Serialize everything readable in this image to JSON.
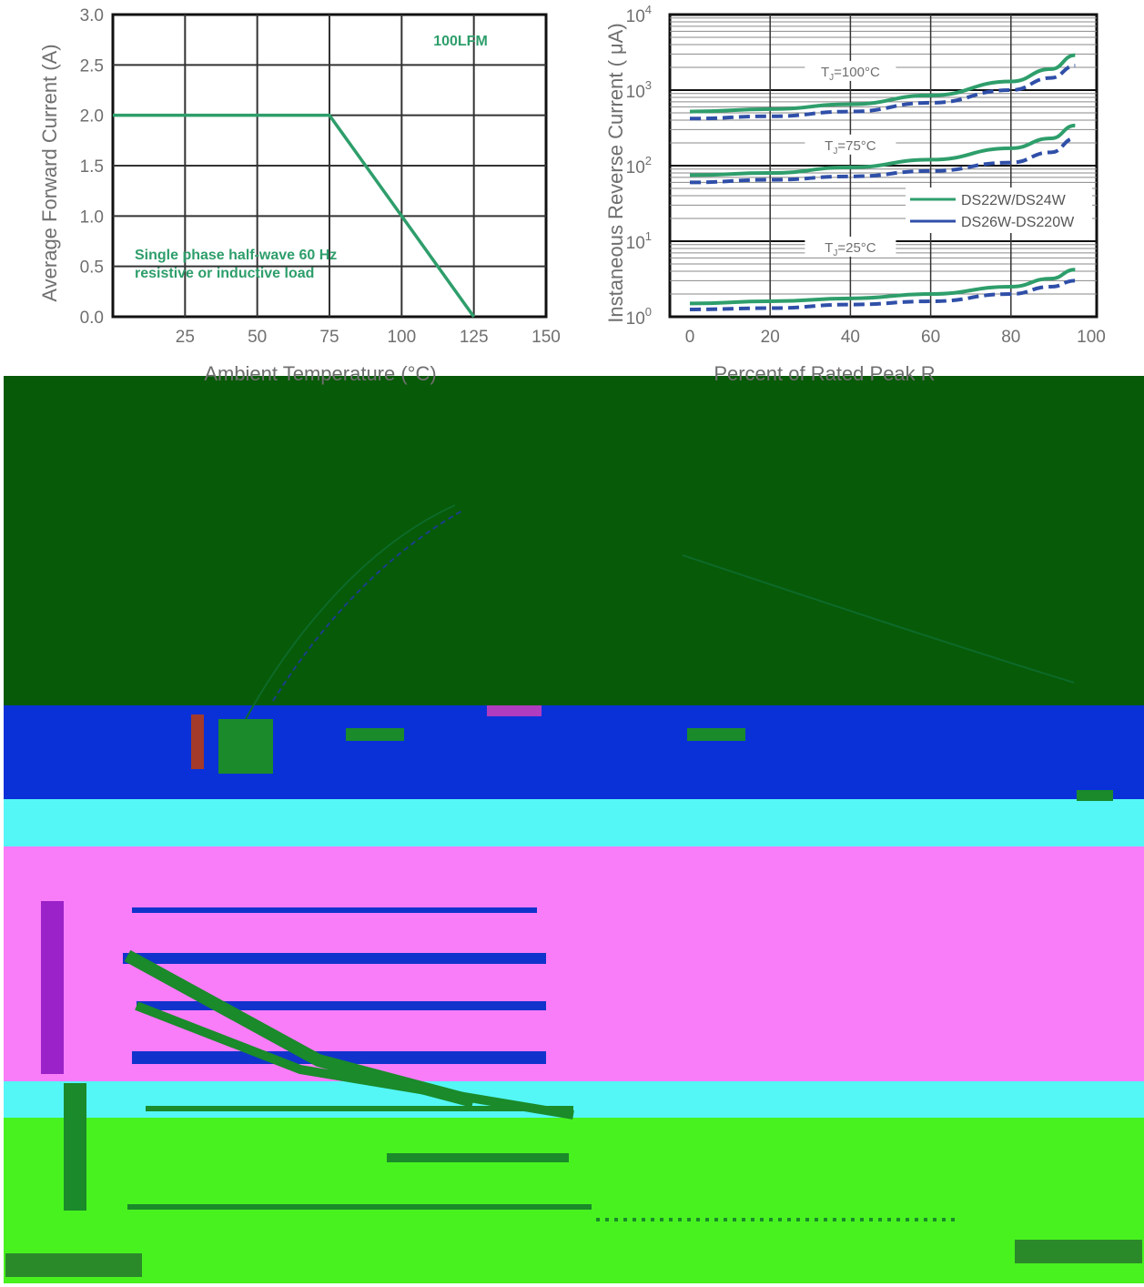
{
  "colors": {
    "series_green": "#2e9e6b",
    "series_blue": "#2f4fa8",
    "frame": "#111111",
    "grid": "#333333",
    "dark_green_band": "#075a07",
    "blue_band": "#0a31d8",
    "cyan_band": "#55f6f6",
    "pink_band": "#f97cf9",
    "lime_band": "#48f21f",
    "text_gray": "#6f6f6f"
  },
  "chart_data": [
    {
      "type": "line",
      "xlabel": "Ambient  Temperature (°C)",
      "ylabel": "Average Forward Current (A)",
      "xlim": [
        0,
        150
      ],
      "ylim": [
        0,
        3
      ],
      "x_ticks": [
        "25",
        "50",
        "75",
        "100",
        "125",
        "150"
      ],
      "y_ticks": [
        "0.0",
        "0.5",
        "1.0",
        "1.5",
        "2.0",
        "2.5",
        "3.0"
      ],
      "grid": true,
      "annotations": [
        "100LFM",
        "Single phase half-wave 60 Hz",
        "resistive or inductive load"
      ],
      "series": [
        {
          "x": [
            0,
            75,
            125
          ],
          "y": [
            2.0,
            2.0,
            0.0
          ]
        }
      ]
    },
    {
      "type": "line",
      "xlabel": "Percent of Rated Peak R",
      "ylabel": "Instaneous Reverse Current ( μA)",
      "y_scale": "log",
      "xlim": [
        0,
        100
      ],
      "ylim": [
        1,
        10000
      ],
      "x_ticks": [
        "0",
        "20",
        "40",
        "60",
        "80",
        "100"
      ],
      "y_ticks": [
        {
          "base": "10",
          "exp": "0"
        },
        {
          "base": "10",
          "exp": "1"
        },
        {
          "base": "10",
          "exp": "2"
        },
        {
          "base": "10",
          "exp": "3"
        },
        {
          "base": "10",
          "exp": "4"
        }
      ],
      "grid": true,
      "legend_position": "right",
      "temperature_labels": [
        {
          "pre": "T",
          "sub": "J",
          "post": "=100°C",
          "x": 40,
          "y": 1700
        },
        {
          "pre": "T",
          "sub": "J",
          "post": "=75°C",
          "x": 40,
          "y": 180
        },
        {
          "pre": "T",
          "sub": "J",
          "post": "=25°C",
          "x": 40,
          "y": 8
        }
      ],
      "series": [
        {
          "name": "DS22W/DS24W",
          "style": "solid",
          "x": [
            0,
            20,
            40,
            60,
            80,
            90,
            96
          ],
          "y": [
            1.5,
            1.6,
            1.75,
            2.0,
            2.5,
            3.2,
            4.2
          ]
        },
        {
          "name": "DS26W-DS220W",
          "style": "dashed",
          "x": [
            0,
            20,
            40,
            60,
            80,
            90,
            96
          ],
          "y": [
            1.25,
            1.3,
            1.45,
            1.6,
            2.0,
            2.5,
            3.0
          ]
        },
        {
          "name": "DS22W/DS24W",
          "style": "solid",
          "x": [
            0,
            20,
            40,
            60,
            80,
            90,
            96
          ],
          "y": [
            75,
            80,
            95,
            120,
            170,
            230,
            340
          ]
        },
        {
          "name": "DS26W-DS220W",
          "style": "dashed",
          "x": [
            0,
            20,
            40,
            60,
            80,
            90,
            96
          ],
          "y": [
            60,
            65,
            72,
            85,
            110,
            150,
            230
          ]
        },
        {
          "name": "DS22W/DS24W",
          "style": "solid",
          "x": [
            0,
            20,
            40,
            60,
            80,
            90,
            96
          ],
          "y": [
            520,
            560,
            650,
            850,
            1300,
            1900,
            2900
          ]
        },
        {
          "name": "DS26W-DS220W",
          "style": "dashed",
          "x": [
            0,
            20,
            40,
            60,
            80,
            90,
            96
          ],
          "y": [
            420,
            450,
            520,
            680,
            1000,
            1450,
            2100
          ]
        }
      ],
      "legend": [
        "DS22W/DS24W",
        "DS26W-DS220W"
      ]
    }
  ]
}
